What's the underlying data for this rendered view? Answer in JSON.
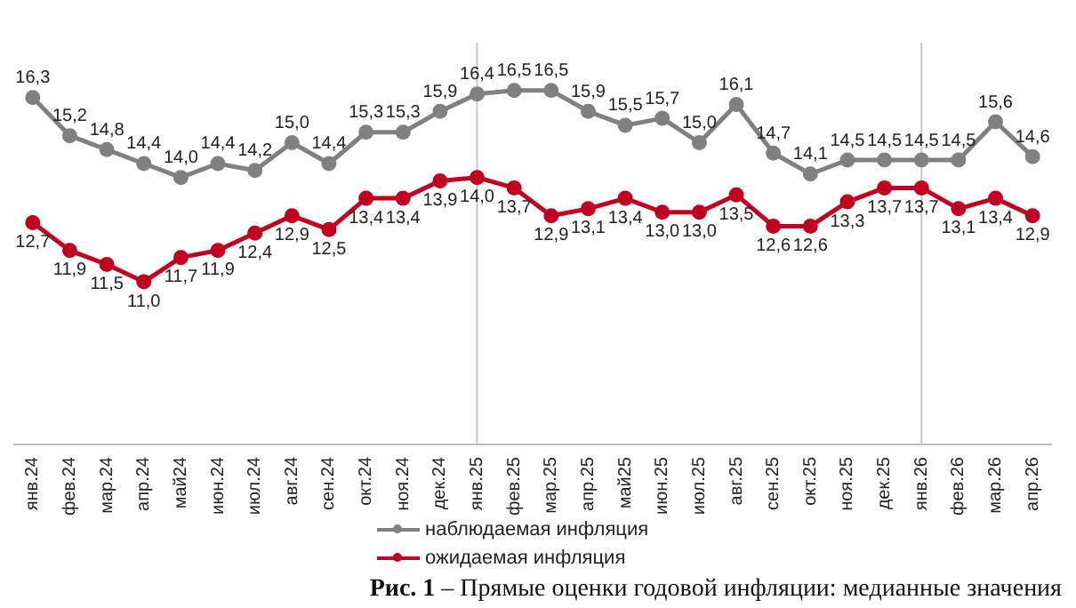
{
  "chart_data": {
    "type": "line",
    "title": "Рис. 1 – Прямые оценки годовой инфляции: медианные значения",
    "categories": [
      "янв.24",
      "фев.24",
      "мар.24",
      "апр.24",
      "май24",
      "июн.24",
      "июл.24",
      "авг.24",
      "сен.24",
      "окт.24",
      "ноя.24",
      "дек.24",
      "янв.25",
      "фев.25",
      "мар.25",
      "апр.25",
      "май25",
      "июн.25",
      "июл.25",
      "авг.25",
      "сен.25",
      "окт.25",
      "ноя.25",
      "дек.25",
      "янв.26",
      "фев.26",
      "мар.26",
      "апр.26"
    ],
    "series": [
      {
        "name": "наблюдаемая инфляция",
        "color": "#808080",
        "values": [
          16.3,
          15.2,
          14.8,
          14.4,
          14.0,
          14.4,
          14.2,
          15.0,
          14.4,
          15.3,
          15.3,
          15.9,
          16.4,
          16.5,
          16.5,
          15.9,
          15.5,
          15.7,
          15.0,
          16.1,
          14.7,
          14.1,
          14.5,
          14.5,
          14.5,
          14.5,
          15.6,
          14.6
        ],
        "value_labels": [
          "16,3",
          "15,2",
          "14,8",
          "14,4",
          "14,0",
          "14,4",
          "14,2",
          "15,0",
          "14,4",
          "15,3",
          "15,3",
          "15,9",
          "16,4",
          "16,5",
          "16,5",
          "15,9",
          "15,5",
          "15,7",
          "15,0",
          "16,1",
          "14,7",
          "14,1",
          "14,5",
          "14,5",
          "14,5",
          "14,5",
          "15,6",
          "14,6"
        ]
      },
      {
        "name": "ожидаемая инфляция",
        "color": "#c00020",
        "values": [
          12.7,
          11.9,
          11.5,
          11.0,
          11.7,
          11.9,
          12.4,
          12.9,
          12.5,
          13.4,
          13.4,
          13.9,
          14.0,
          13.7,
          12.9,
          13.1,
          13.4,
          13.0,
          13.0,
          13.5,
          12.6,
          12.6,
          13.3,
          13.7,
          13.7,
          13.1,
          13.4,
          12.9
        ],
        "value_labels": [
          "12,7",
          "11,9",
          "11,5",
          "11,0",
          "11,7",
          "11,9",
          "12,4",
          "12,9",
          "12,5",
          "13,4",
          "13,4",
          "13,9",
          "14,0",
          "13,7",
          "12,9",
          "13,1",
          "13,4",
          "13,0",
          "13,0",
          "13,5",
          "12,6",
          "12,6",
          "13,3",
          "13,7",
          "13,7",
          "13,1",
          "13,4",
          "12,9"
        ]
      }
    ],
    "ref_lines": [
      {
        "axis": "x",
        "value": "янв.25",
        "color": "#c8c8c8"
      },
      {
        "axis": "x",
        "value": "янв.26",
        "color": "#c8c8c8"
      }
    ],
    "marker": "circle",
    "legend": "bottom",
    "grid": false
  }
}
